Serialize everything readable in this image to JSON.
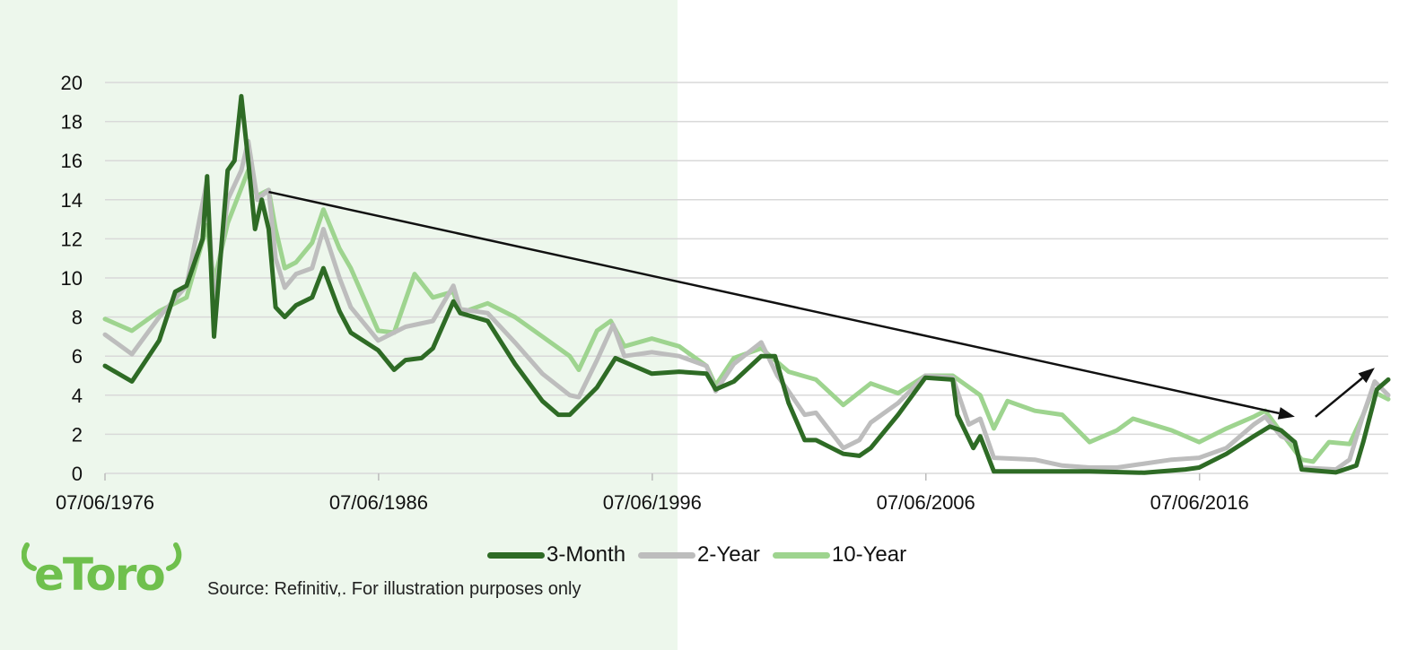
{
  "brand": {
    "logo_text": "eToro",
    "logo_color": "#6fc04d"
  },
  "source_note": "Source: Refinitiv,. For illustration purposes only",
  "colors": {
    "panel_bg": "#edf7ec",
    "grid": "#d9d9d9",
    "arrow": "#111111"
  },
  "chart_data": {
    "type": "line",
    "x_type": "date",
    "x_ticks": [
      "1976-06-07",
      "1986-06-07",
      "1996-06-07",
      "2006-06-07",
      "2016-06-07"
    ],
    "x_tick_labels": [
      "07/06/1976",
      "07/06/1986",
      "07/06/1996",
      "07/06/2006",
      "07/06/2016"
    ],
    "xlim": [
      "1976-06-07",
      "2023-05-01"
    ],
    "ylim": [
      0,
      20
    ],
    "y_ticks": [
      0,
      2,
      4,
      6,
      8,
      10,
      12,
      14,
      16,
      18,
      20
    ],
    "grid": "horizontal",
    "legend_position": "bottom",
    "title": "",
    "xlabel": "",
    "ylabel": "",
    "series": [
      {
        "name": "3-Month",
        "color": "#2e6b25",
        "points": [
          [
            "1976-06-07",
            5.5
          ],
          [
            "1977-06-01",
            4.7
          ],
          [
            "1978-06-01",
            6.8
          ],
          [
            "1979-01-01",
            9.3
          ],
          [
            "1979-06-01",
            9.6
          ],
          [
            "1980-01-01",
            12.0
          ],
          [
            "1980-03-01",
            15.2
          ],
          [
            "1980-06-01",
            7.0
          ],
          [
            "1980-12-01",
            15.5
          ],
          [
            "1981-03-01",
            16.0
          ],
          [
            "1981-06-01",
            19.3
          ],
          [
            "1981-09-01",
            16.0
          ],
          [
            "1981-12-01",
            12.5
          ],
          [
            "1982-03-01",
            14.0
          ],
          [
            "1982-06-01",
            12.5
          ],
          [
            "1982-09-01",
            8.5
          ],
          [
            "1983-01-01",
            8.0
          ],
          [
            "1983-06-01",
            8.6
          ],
          [
            "1984-01-01",
            9.0
          ],
          [
            "1984-06-01",
            10.5
          ],
          [
            "1985-01-01",
            8.3
          ],
          [
            "1985-06-01",
            7.2
          ],
          [
            "1986-06-01",
            6.3
          ],
          [
            "1987-01-01",
            5.3
          ],
          [
            "1987-06-01",
            5.8
          ],
          [
            "1988-01-01",
            5.9
          ],
          [
            "1988-06-01",
            6.4
          ],
          [
            "1989-03-01",
            8.8
          ],
          [
            "1989-06-01",
            8.2
          ],
          [
            "1990-06-01",
            7.8
          ],
          [
            "1991-06-01",
            5.6
          ],
          [
            "1992-06-01",
            3.7
          ],
          [
            "1993-01-01",
            3.0
          ],
          [
            "1993-06-01",
            3.0
          ],
          [
            "1994-06-01",
            4.4
          ],
          [
            "1995-02-01",
            5.9
          ],
          [
            "1996-06-01",
            5.1
          ],
          [
            "1997-06-01",
            5.2
          ],
          [
            "1998-06-01",
            5.1
          ],
          [
            "1998-10-01",
            4.3
          ],
          [
            "1999-06-01",
            4.7
          ],
          [
            "2000-06-01",
            6.0
          ],
          [
            "2000-12-01",
            6.0
          ],
          [
            "2001-06-01",
            3.6
          ],
          [
            "2002-01-01",
            1.7
          ],
          [
            "2002-06-01",
            1.7
          ],
          [
            "2003-06-01",
            1.0
          ],
          [
            "2004-01-01",
            0.9
          ],
          [
            "2004-06-01",
            1.3
          ],
          [
            "2005-06-01",
            3.0
          ],
          [
            "2006-06-01",
            4.9
          ],
          [
            "2007-06-01",
            4.8
          ],
          [
            "2007-08-01",
            3.0
          ],
          [
            "2008-03-01",
            1.3
          ],
          [
            "2008-06-01",
            1.9
          ],
          [
            "2008-12-01",
            0.1
          ],
          [
            "2010-06-01",
            0.1
          ],
          [
            "2012-06-01",
            0.1
          ],
          [
            "2014-06-01",
            0.03
          ],
          [
            "2015-12-01",
            0.2
          ],
          [
            "2016-06-01",
            0.3
          ],
          [
            "2017-06-01",
            1.0
          ],
          [
            "2018-06-01",
            1.9
          ],
          [
            "2019-01-01",
            2.4
          ],
          [
            "2019-06-01",
            2.2
          ],
          [
            "2019-12-01",
            1.6
          ],
          [
            "2020-03-01",
            0.2
          ],
          [
            "2021-06-01",
            0.05
          ],
          [
            "2022-03-01",
            0.4
          ],
          [
            "2022-06-01",
            1.6
          ],
          [
            "2022-12-01",
            4.3
          ],
          [
            "2023-05-01",
            4.8
          ]
        ]
      },
      {
        "name": "2-Year",
        "color": "#bdbdbd",
        "points": [
          [
            "1976-06-07",
            7.1
          ],
          [
            "1977-06-01",
            6.1
          ],
          [
            "1978-06-01",
            8.0
          ],
          [
            "1979-06-01",
            9.6
          ],
          [
            "1980-03-01",
            15.0
          ],
          [
            "1980-06-01",
            8.5
          ],
          [
            "1980-12-01",
            14.0
          ],
          [
            "1981-06-01",
            15.5
          ],
          [
            "1981-09-01",
            17.0
          ],
          [
            "1982-01-01",
            14.0
          ],
          [
            "1982-06-01",
            14.5
          ],
          [
            "1982-09-01",
            11.0
          ],
          [
            "1983-01-01",
            9.5
          ],
          [
            "1983-06-01",
            10.2
          ],
          [
            "1984-01-01",
            10.5
          ],
          [
            "1984-06-01",
            12.5
          ],
          [
            "1985-01-01",
            10.0
          ],
          [
            "1985-06-01",
            8.5
          ],
          [
            "1986-06-01",
            6.8
          ],
          [
            "1987-06-01",
            7.5
          ],
          [
            "1988-06-01",
            7.8
          ],
          [
            "1989-03-01",
            9.6
          ],
          [
            "1989-06-01",
            8.4
          ],
          [
            "1990-06-01",
            8.2
          ],
          [
            "1991-06-01",
            6.7
          ],
          [
            "1992-06-01",
            5.1
          ],
          [
            "1993-06-01",
            4.0
          ],
          [
            "1993-10-01",
            3.9
          ],
          [
            "1994-06-01",
            5.8
          ],
          [
            "1995-01-01",
            7.6
          ],
          [
            "1995-06-01",
            6.0
          ],
          [
            "1996-06-01",
            6.2
          ],
          [
            "1997-06-01",
            6.0
          ],
          [
            "1998-06-01",
            5.5
          ],
          [
            "1998-10-01",
            4.2
          ],
          [
            "1999-06-01",
            5.6
          ],
          [
            "2000-06-01",
            6.7
          ],
          [
            "2001-01-01",
            5.0
          ],
          [
            "2001-06-01",
            4.2
          ],
          [
            "2002-01-01",
            3.0
          ],
          [
            "2002-06-01",
            3.1
          ],
          [
            "2003-06-01",
            1.3
          ],
          [
            "2004-01-01",
            1.7
          ],
          [
            "2004-06-01",
            2.6
          ],
          [
            "2005-06-01",
            3.6
          ],
          [
            "2006-06-01",
            5.0
          ],
          [
            "2007-06-01",
            4.9
          ],
          [
            "2008-01-01",
            2.5
          ],
          [
            "2008-06-01",
            2.8
          ],
          [
            "2008-12-01",
            0.8
          ],
          [
            "2010-06-01",
            0.7
          ],
          [
            "2011-06-01",
            0.4
          ],
          [
            "2012-06-01",
            0.3
          ],
          [
            "2013-06-01",
            0.3
          ],
          [
            "2014-06-01",
            0.5
          ],
          [
            "2015-06-01",
            0.7
          ],
          [
            "2016-06-01",
            0.8
          ],
          [
            "2017-06-01",
            1.3
          ],
          [
            "2018-06-01",
            2.5
          ],
          [
            "2018-11-01",
            2.9
          ],
          [
            "2019-06-01",
            1.9
          ],
          [
            "2019-12-01",
            1.6
          ],
          [
            "2020-03-01",
            0.3
          ],
          [
            "2021-06-01",
            0.2
          ],
          [
            "2021-12-01",
            0.7
          ],
          [
            "2022-06-01",
            3.0
          ],
          [
            "2022-11-01",
            4.7
          ],
          [
            "2023-05-01",
            4.0
          ]
        ]
      },
      {
        "name": "10-Year",
        "color": "#9ed48f",
        "points": [
          [
            "1976-06-07",
            7.9
          ],
          [
            "1977-06-01",
            7.3
          ],
          [
            "1978-06-01",
            8.3
          ],
          [
            "1979-06-01",
            9.0
          ],
          [
            "1980-03-01",
            12.7
          ],
          [
            "1980-06-01",
            9.8
          ],
          [
            "1980-12-01",
            12.8
          ],
          [
            "1981-09-01",
            15.5
          ],
          [
            "1982-01-01",
            14.2
          ],
          [
            "1982-06-01",
            14.5
          ],
          [
            "1982-09-01",
            12.5
          ],
          [
            "1983-01-01",
            10.5
          ],
          [
            "1983-06-01",
            10.8
          ],
          [
            "1984-01-01",
            11.8
          ],
          [
            "1984-06-01",
            13.5
          ],
          [
            "1985-01-01",
            11.5
          ],
          [
            "1985-06-01",
            10.5
          ],
          [
            "1986-06-01",
            7.3
          ],
          [
            "1987-01-01",
            7.2
          ],
          [
            "1987-10-01",
            10.2
          ],
          [
            "1988-06-01",
            9.0
          ],
          [
            "1989-03-01",
            9.3
          ],
          [
            "1989-06-01",
            8.2
          ],
          [
            "1990-06-01",
            8.7
          ],
          [
            "1991-06-01",
            8.0
          ],
          [
            "1992-06-01",
            7.0
          ],
          [
            "1993-06-01",
            6.0
          ],
          [
            "1993-10-01",
            5.3
          ],
          [
            "1994-06-01",
            7.3
          ],
          [
            "1994-12-01",
            7.8
          ],
          [
            "1995-06-01",
            6.5
          ],
          [
            "1996-06-01",
            6.9
          ],
          [
            "1997-06-01",
            6.5
          ],
          [
            "1998-06-01",
            5.5
          ],
          [
            "1998-10-01",
            4.5
          ],
          [
            "1999-06-01",
            5.9
          ],
          [
            "2000-06-01",
            6.4
          ],
          [
            "2001-06-01",
            5.2
          ],
          [
            "2002-06-01",
            4.8
          ],
          [
            "2003-06-01",
            3.5
          ],
          [
            "2004-06-01",
            4.6
          ],
          [
            "2005-06-01",
            4.1
          ],
          [
            "2006-06-01",
            5.0
          ],
          [
            "2007-06-01",
            5.0
          ],
          [
            "2008-06-01",
            4.0
          ],
          [
            "2008-12-01",
            2.3
          ],
          [
            "2009-06-01",
            3.7
          ],
          [
            "2010-06-01",
            3.2
          ],
          [
            "2011-06-01",
            3.0
          ],
          [
            "2012-06-01",
            1.6
          ],
          [
            "2013-06-01",
            2.2
          ],
          [
            "2014-01-01",
            2.8
          ],
          [
            "2015-06-01",
            2.2
          ],
          [
            "2016-06-01",
            1.6
          ],
          [
            "2017-06-01",
            2.3
          ],
          [
            "2018-06-01",
            2.9
          ],
          [
            "2018-11-01",
            3.2
          ],
          [
            "2019-06-01",
            2.1
          ],
          [
            "2020-03-01",
            0.7
          ],
          [
            "2020-08-01",
            0.6
          ],
          [
            "2021-03-01",
            1.6
          ],
          [
            "2021-12-01",
            1.5
          ],
          [
            "2022-06-01",
            3.0
          ],
          [
            "2022-10-01",
            4.2
          ],
          [
            "2023-05-01",
            3.8
          ]
        ]
      }
    ],
    "annotations": [
      {
        "type": "arrow",
        "from": [
          "1982-06-01",
          14.4
        ],
        "to": [
          "2019-12-01",
          2.9
        ]
      },
      {
        "type": "arrow",
        "from": [
          "2020-09-01",
          2.9
        ],
        "to": [
          "2022-11-01",
          5.4
        ]
      }
    ]
  }
}
